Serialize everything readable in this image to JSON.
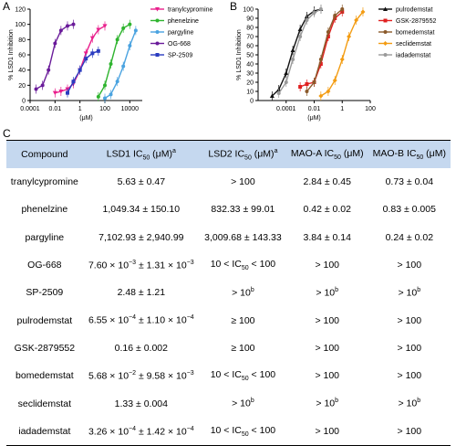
{
  "panels": {
    "a": "A",
    "b": "B",
    "c": "C"
  },
  "chart_data": [
    {
      "type": "line",
      "ylabel": "% LSD1 Inhibition",
      "xlabel": "(μM)",
      "xscale": "log",
      "xlim": [
        0.0001,
        100000
      ],
      "ylim": [
        0,
        120
      ],
      "xticks": [
        "0.0001",
        "0.01",
        "1",
        "100",
        "10000"
      ],
      "yticks": [
        "0",
        "20",
        "40",
        "60",
        "80",
        "100",
        "120"
      ],
      "legend_position": "right",
      "series": [
        {
          "name": "tranylcypromine",
          "color": "#e91e8c",
          "marker": "triangle-down",
          "x": [
            0.01,
            0.03,
            0.1,
            0.3,
            1,
            3,
            10,
            30,
            100
          ],
          "y": [
            10,
            12,
            15,
            22,
            40,
            62,
            82,
            93,
            98
          ]
        },
        {
          "name": "phenelzine",
          "color": "#2fb42f",
          "marker": "circle",
          "x": [
            30,
            100,
            300,
            1000,
            3000,
            10000
          ],
          "y": [
            5,
            20,
            48,
            80,
            95,
            100
          ]
        },
        {
          "name": "pargyline",
          "color": "#4aa3e0",
          "marker": "circle",
          "x": [
            100,
            300,
            1000,
            3000,
            10000,
            30000
          ],
          "y": [
            3,
            8,
            25,
            45,
            72,
            92
          ]
        },
        {
          "name": "OG-668",
          "color": "#6a1b9a",
          "marker": "circle",
          "x": [
            0.0003,
            0.001,
            0.003,
            0.01,
            0.03,
            0.1,
            0.3
          ],
          "y": [
            15,
            20,
            40,
            75,
            92,
            98,
            100
          ]
        },
        {
          "name": "SP-2509",
          "color": "#2a3cc0",
          "marker": "square",
          "x": [
            0.1,
            0.3,
            1,
            3,
            10,
            30
          ],
          "y": [
            10,
            25,
            40,
            55,
            62,
            65
          ]
        }
      ]
    },
    {
      "type": "line",
      "ylabel": "% LSD1 Inhibition",
      "xlabel": "(μM)",
      "xscale": "log",
      "xlim": [
        1e-06,
        100
      ],
      "ylim": [
        0,
        100
      ],
      "xticks": [
        "0.0001",
        "0.01",
        "1",
        "100"
      ],
      "yticks": [
        "0",
        "10",
        "20",
        "30",
        "40",
        "50",
        "60",
        "70",
        "80",
        "90",
        "100"
      ],
      "legend_position": "right",
      "series": [
        {
          "name": "pulrodemstat",
          "color": "#111111",
          "marker": "triangle-up",
          "x": [
            1e-05,
            3e-05,
            0.0001,
            0.0003,
            0.001,
            0.003,
            0.01,
            0.03
          ],
          "y": [
            5,
            12,
            30,
            55,
            78,
            92,
            98,
            100
          ]
        },
        {
          "name": "GSK-2879552",
          "color": "#e02020",
          "marker": "square",
          "x": [
            0.001,
            0.003,
            0.01,
            0.03,
            0.1,
            0.3,
            1
          ],
          "y": [
            15,
            18,
            20,
            40,
            70,
            90,
            97
          ]
        },
        {
          "name": "bomedemstat",
          "color": "#8b5a2b",
          "marker": "circle",
          "x": [
            0.003,
            0.01,
            0.03,
            0.1,
            0.3,
            1
          ],
          "y": [
            10,
            20,
            45,
            75,
            93,
            100
          ]
        },
        {
          "name": "seclidemstat",
          "color": "#f39c12",
          "marker": "diamond",
          "x": [
            0.03,
            0.1,
            0.3,
            1,
            3,
            10,
            30
          ],
          "y": [
            5,
            10,
            22,
            45,
            70,
            88,
            97
          ]
        },
        {
          "name": "iadademstat",
          "color": "#9a9a9a",
          "marker": "circle",
          "x": [
            3e-05,
            0.0001,
            0.0003,
            0.001,
            0.003,
            0.01,
            0.03
          ],
          "y": [
            8,
            20,
            45,
            70,
            88,
            96,
            100
          ]
        }
      ]
    },
    {
      "type": "table",
      "headers": [
        "Compound",
        "LSD1 IC50 (μM)a",
        "LSD2 IC50 (μM)a",
        "MAO-A IC50 (μM)",
        "MAO-B IC50 (μM)"
      ],
      "rows": [
        [
          "tranylcypromine",
          "5.63 ± 0.47",
          "> 100",
          "2.84 ± 0.45",
          "0.73 ± 0.04"
        ],
        [
          "phenelzine",
          "1,049.34 ± 150.10",
          "832.33 ± 99.01",
          "0.42 ± 0.02",
          "0.83 ± 0.005"
        ],
        [
          "pargyline",
          "7,102.93 ± 2,940.99",
          "3,009.68 ± 143.33",
          "3.84 ± 0.14",
          "0.24 ± 0.02"
        ],
        [
          "OG-668",
          "7.60 × 10−3 ± 1.31 × 10−3",
          "10 < IC50 < 100",
          "> 100",
          "> 100"
        ],
        [
          "SP-2509",
          "2.48 ± 1.21",
          "> 10b",
          "> 10b",
          "> 10b"
        ],
        [
          "pulrodemstat",
          "6.55 × 10−4 ± 1.10 × 10−4",
          "≥ 100",
          "> 100",
          "> 100"
        ],
        [
          "GSK-2879552",
          "0.16 ± 0.002",
          "≥ 100",
          "> 100",
          "> 100"
        ],
        [
          "bomedemstat",
          "5.68 × 10−2 ± 9.58 × 10−3",
          "10 < IC50 < 100",
          "> 100",
          "> 100"
        ],
        [
          "seclidemstat",
          "1.33 ± 0.004",
          "> 10b",
          "> 10b",
          "> 10b"
        ],
        [
          "iadademstat",
          "3.26 × 10−4 ± 1.42 × 10−4",
          "10 < IC50 < 100",
          "> 100",
          "> 100"
        ]
      ]
    }
  ]
}
